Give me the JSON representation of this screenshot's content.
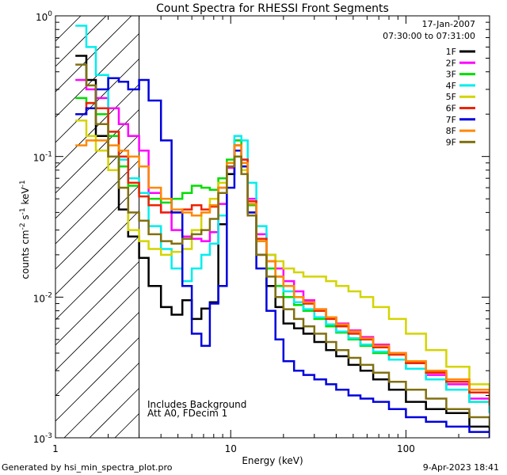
{
  "chart_data": {
    "type": "line",
    "title": "Count Spectra for RHESSI Front Segments",
    "xlabel": "Energy (keV)",
    "ylabel_base": "counts cm",
    "ylabel_exp1": "-2",
    "ylabel_mid": " s",
    "ylabel_exp2": "-1",
    "ylabel_unit": " keV",
    "ylabel_exp3": "-1",
    "x_scale": "log",
    "y_scale": "log",
    "xlim": [
      1,
      300
    ],
    "ylim": [
      0.001,
      1
    ],
    "x_ticks": [
      {
        "value": 1,
        "label": "1"
      },
      {
        "value": 10,
        "label": "10"
      },
      {
        "value": 100,
        "label": "100"
      }
    ],
    "y_ticks": [
      {
        "value": 0.001,
        "base": "10",
        "exp": "-3"
      },
      {
        "value": 0.01,
        "base": "10",
        "exp": "-2"
      },
      {
        "value": 0.1,
        "base": "10",
        "exp": "-1"
      },
      {
        "value": 1,
        "base": "10",
        "exp": "0"
      }
    ],
    "threshold_energy": 3,
    "date": "17-Jan-2007",
    "time_range": "07:30:00 to 07:31:00",
    "annotation_lines": [
      "Includes Background",
      "Att A0, FDecim 1"
    ],
    "footer_left": "Generated by hsi_min_spectra_plot.pro",
    "footer_right": "9-Apr-2023 18:41",
    "legend_position": "top-right",
    "series": [
      {
        "name": "1F",
        "color": "#000000",
        "x": [
          1.3,
          1.5,
          1.7,
          2.0,
          2.3,
          2.6,
          3.0,
          3.4,
          4.0,
          4.6,
          5.3,
          6.0,
          6.8,
          7.6,
          8.5,
          9.5,
          10.5,
          11.5,
          12.5,
          14,
          16,
          18,
          20,
          23,
          26,
          30,
          35,
          40,
          47,
          55,
          65,
          80,
          100,
          130,
          170,
          230,
          300
        ],
        "y": [
          0.52,
          0.35,
          0.14,
          0.1,
          0.042,
          0.027,
          0.019,
          0.012,
          0.0085,
          0.0075,
          0.0095,
          0.007,
          0.0083,
          0.0092,
          0.033,
          0.075,
          0.12,
          0.085,
          0.04,
          0.02,
          0.012,
          0.0085,
          0.0065,
          0.006,
          0.0055,
          0.0048,
          0.0042,
          0.0038,
          0.0033,
          0.003,
          0.0026,
          0.0022,
          0.0018,
          0.0016,
          0.0015,
          0.0012,
          0.0011
        ]
      },
      {
        "name": "2F",
        "color": "#ff00ff",
        "x": [
          1.3,
          1.5,
          1.7,
          2.0,
          2.3,
          2.6,
          3.0,
          3.4,
          4.0,
          4.6,
          5.3,
          6.0,
          6.8,
          7.6,
          8.5,
          9.5,
          10.5,
          11.5,
          12.5,
          14,
          16,
          18,
          20,
          23,
          26,
          30,
          35,
          40,
          47,
          55,
          65,
          80,
          100,
          130,
          170,
          230,
          300
        ],
        "y": [
          0.35,
          0.3,
          0.26,
          0.22,
          0.17,
          0.14,
          0.11,
          0.055,
          0.04,
          0.03,
          0.027,
          0.026,
          0.025,
          0.029,
          0.046,
          0.083,
          0.13,
          0.095,
          0.05,
          0.028,
          0.02,
          0.016,
          0.013,
          0.011,
          0.0095,
          0.0082,
          0.0072,
          0.0065,
          0.0058,
          0.0052,
          0.0046,
          0.004,
          0.0034,
          0.0028,
          0.0024,
          0.0019,
          0.0016
        ]
      },
      {
        "name": "3F",
        "color": "#00dd00",
        "x": [
          1.3,
          1.5,
          1.7,
          2.0,
          2.3,
          2.6,
          3.0,
          3.4,
          4.0,
          4.6,
          5.3,
          6.0,
          6.8,
          7.6,
          8.5,
          9.5,
          10.5,
          11.5,
          12.5,
          14,
          16,
          18,
          20,
          23,
          26,
          30,
          35,
          40,
          47,
          55,
          65,
          80,
          100,
          130,
          170,
          230,
          300
        ],
        "y": [
          0.26,
          0.24,
          0.2,
          0.14,
          0.085,
          0.062,
          0.055,
          0.05,
          0.047,
          0.05,
          0.055,
          0.062,
          0.06,
          0.058,
          0.07,
          0.095,
          0.13,
          0.09,
          0.045,
          0.025,
          0.016,
          0.012,
          0.01,
          0.0088,
          0.008,
          0.007,
          0.0062,
          0.0056,
          0.005,
          0.0045,
          0.004,
          0.0036,
          0.0031,
          0.0026,
          0.0022,
          0.0018,
          0.0015
        ]
      },
      {
        "name": "4F",
        "color": "#00eeee",
        "x": [
          1.3,
          1.5,
          1.7,
          2.0,
          2.3,
          2.6,
          3.0,
          3.4,
          4.0,
          4.6,
          5.3,
          6.0,
          6.8,
          7.6,
          8.5,
          9.5,
          10.5,
          11.5,
          12.5,
          14,
          16,
          18,
          20,
          23,
          26,
          30,
          35,
          40,
          47,
          55,
          65,
          80,
          100,
          130,
          170,
          230,
          300
        ],
        "y": [
          0.85,
          0.6,
          0.38,
          0.15,
          0.095,
          0.07,
          0.055,
          0.032,
          0.022,
          0.016,
          0.013,
          0.016,
          0.02,
          0.024,
          0.038,
          0.09,
          0.14,
          0.13,
          0.065,
          0.032,
          0.02,
          0.014,
          0.011,
          0.0092,
          0.0082,
          0.0072,
          0.0064,
          0.0057,
          0.0051,
          0.0046,
          0.0041,
          0.0036,
          0.0031,
          0.0026,
          0.0022,
          0.0018,
          0.0015
        ]
      },
      {
        "name": "5F",
        "color": "#d4d400",
        "x": [
          1.3,
          1.5,
          1.7,
          2.0,
          2.3,
          2.6,
          3.0,
          3.4,
          4.0,
          4.6,
          5.3,
          6.0,
          6.8,
          7.6,
          8.5,
          9.5,
          10.5,
          11.5,
          12.5,
          14,
          16,
          18,
          20,
          23,
          26,
          30,
          35,
          40,
          47,
          55,
          65,
          80,
          100,
          130,
          170,
          230,
          300
        ],
        "y": [
          0.18,
          0.14,
          0.11,
          0.08,
          0.06,
          0.03,
          0.025,
          0.022,
          0.02,
          0.021,
          0.022,
          0.03,
          0.04,
          0.05,
          0.065,
          0.09,
          0.11,
          0.08,
          0.04,
          0.025,
          0.02,
          0.018,
          0.016,
          0.015,
          0.014,
          0.014,
          0.013,
          0.012,
          0.011,
          0.01,
          0.0085,
          0.007,
          0.0055,
          0.0042,
          0.0032,
          0.0024,
          0.0018
        ]
      },
      {
        "name": "6F",
        "color": "#ee2200",
        "x": [
          1.3,
          1.5,
          1.7,
          2.0,
          2.3,
          2.6,
          3.0,
          3.4,
          4.0,
          4.6,
          5.3,
          6.0,
          6.8,
          7.6,
          8.5,
          9.5,
          10.5,
          11.5,
          12.5,
          14,
          16,
          18,
          20,
          23,
          26,
          30,
          35,
          40,
          47,
          55,
          65,
          80,
          100,
          130,
          170,
          230,
          300
        ],
        "y": [
          0.2,
          0.24,
          0.22,
          0.15,
          0.1,
          0.065,
          0.052,
          0.045,
          0.04,
          0.04,
          0.042,
          0.045,
          0.042,
          0.044,
          0.06,
          0.09,
          0.12,
          0.095,
          0.048,
          0.026,
          0.018,
          0.014,
          0.012,
          0.01,
          0.009,
          0.008,
          0.007,
          0.0062,
          0.0055,
          0.005,
          0.0044,
          0.0039,
          0.0034,
          0.0029,
          0.0025,
          0.0021,
          0.0017
        ]
      },
      {
        "name": "7F",
        "color": "#0000dd",
        "x": [
          1.3,
          1.5,
          1.7,
          2.0,
          2.3,
          2.6,
          3.0,
          3.4,
          4.0,
          4.6,
          5.3,
          6.0,
          6.8,
          7.6,
          8.5,
          9.5,
          10.5,
          11.5,
          12.5,
          14,
          16,
          18,
          20,
          23,
          26,
          30,
          35,
          40,
          47,
          55,
          65,
          80,
          100,
          130,
          170,
          230,
          300
        ],
        "y": [
          0.2,
          0.22,
          0.3,
          0.36,
          0.34,
          0.3,
          0.35,
          0.25,
          0.13,
          0.04,
          0.012,
          0.0055,
          0.0045,
          0.009,
          0.012,
          0.06,
          0.11,
          0.085,
          0.04,
          0.016,
          0.008,
          0.005,
          0.0035,
          0.003,
          0.0028,
          0.0026,
          0.0024,
          0.0022,
          0.002,
          0.0019,
          0.0018,
          0.0016,
          0.0014,
          0.0013,
          0.0012,
          0.0011,
          0.001
        ]
      },
      {
        "name": "8F",
        "color": "#ff8800",
        "x": [
          1.3,
          1.5,
          1.7,
          2.0,
          2.3,
          2.6,
          3.0,
          3.4,
          4.0,
          4.6,
          5.3,
          6.0,
          6.8,
          7.6,
          8.5,
          9.5,
          10.5,
          11.5,
          12.5,
          14,
          16,
          18,
          20,
          23,
          26,
          30,
          35,
          40,
          47,
          55,
          65,
          80,
          100,
          130,
          170,
          230,
          300
        ],
        "y": [
          0.12,
          0.13,
          0.13,
          0.12,
          0.11,
          0.1,
          0.085,
          0.06,
          0.05,
          0.042,
          0.04,
          0.038,
          0.04,
          0.045,
          0.06,
          0.09,
          0.12,
          0.09,
          0.046,
          0.025,
          0.018,
          0.014,
          0.012,
          0.01,
          0.0092,
          0.0082,
          0.0072,
          0.0064,
          0.0057,
          0.0051,
          0.0045,
          0.004,
          0.0035,
          0.003,
          0.0026,
          0.0022,
          0.0019
        ]
      },
      {
        "name": "9F",
        "color": "#807010",
        "x": [
          1.3,
          1.5,
          1.7,
          2.0,
          2.3,
          2.6,
          3.0,
          3.4,
          4.0,
          4.6,
          5.3,
          6.0,
          6.8,
          7.6,
          8.5,
          9.5,
          10.5,
          11.5,
          12.5,
          14,
          16,
          18,
          20,
          23,
          26,
          30,
          35,
          40,
          47,
          55,
          65,
          80,
          100,
          130,
          170,
          230,
          300
        ],
        "y": [
          0.45,
          0.32,
          0.17,
          0.1,
          0.06,
          0.04,
          0.035,
          0.028,
          0.025,
          0.024,
          0.026,
          0.028,
          0.03,
          0.036,
          0.055,
          0.085,
          0.1,
          0.075,
          0.038,
          0.02,
          0.014,
          0.01,
          0.0082,
          0.007,
          0.0062,
          0.0055,
          0.0048,
          0.0042,
          0.0037,
          0.0033,
          0.0029,
          0.0025,
          0.0022,
          0.0019,
          0.0016,
          0.0014,
          0.0012
        ]
      }
    ]
  }
}
